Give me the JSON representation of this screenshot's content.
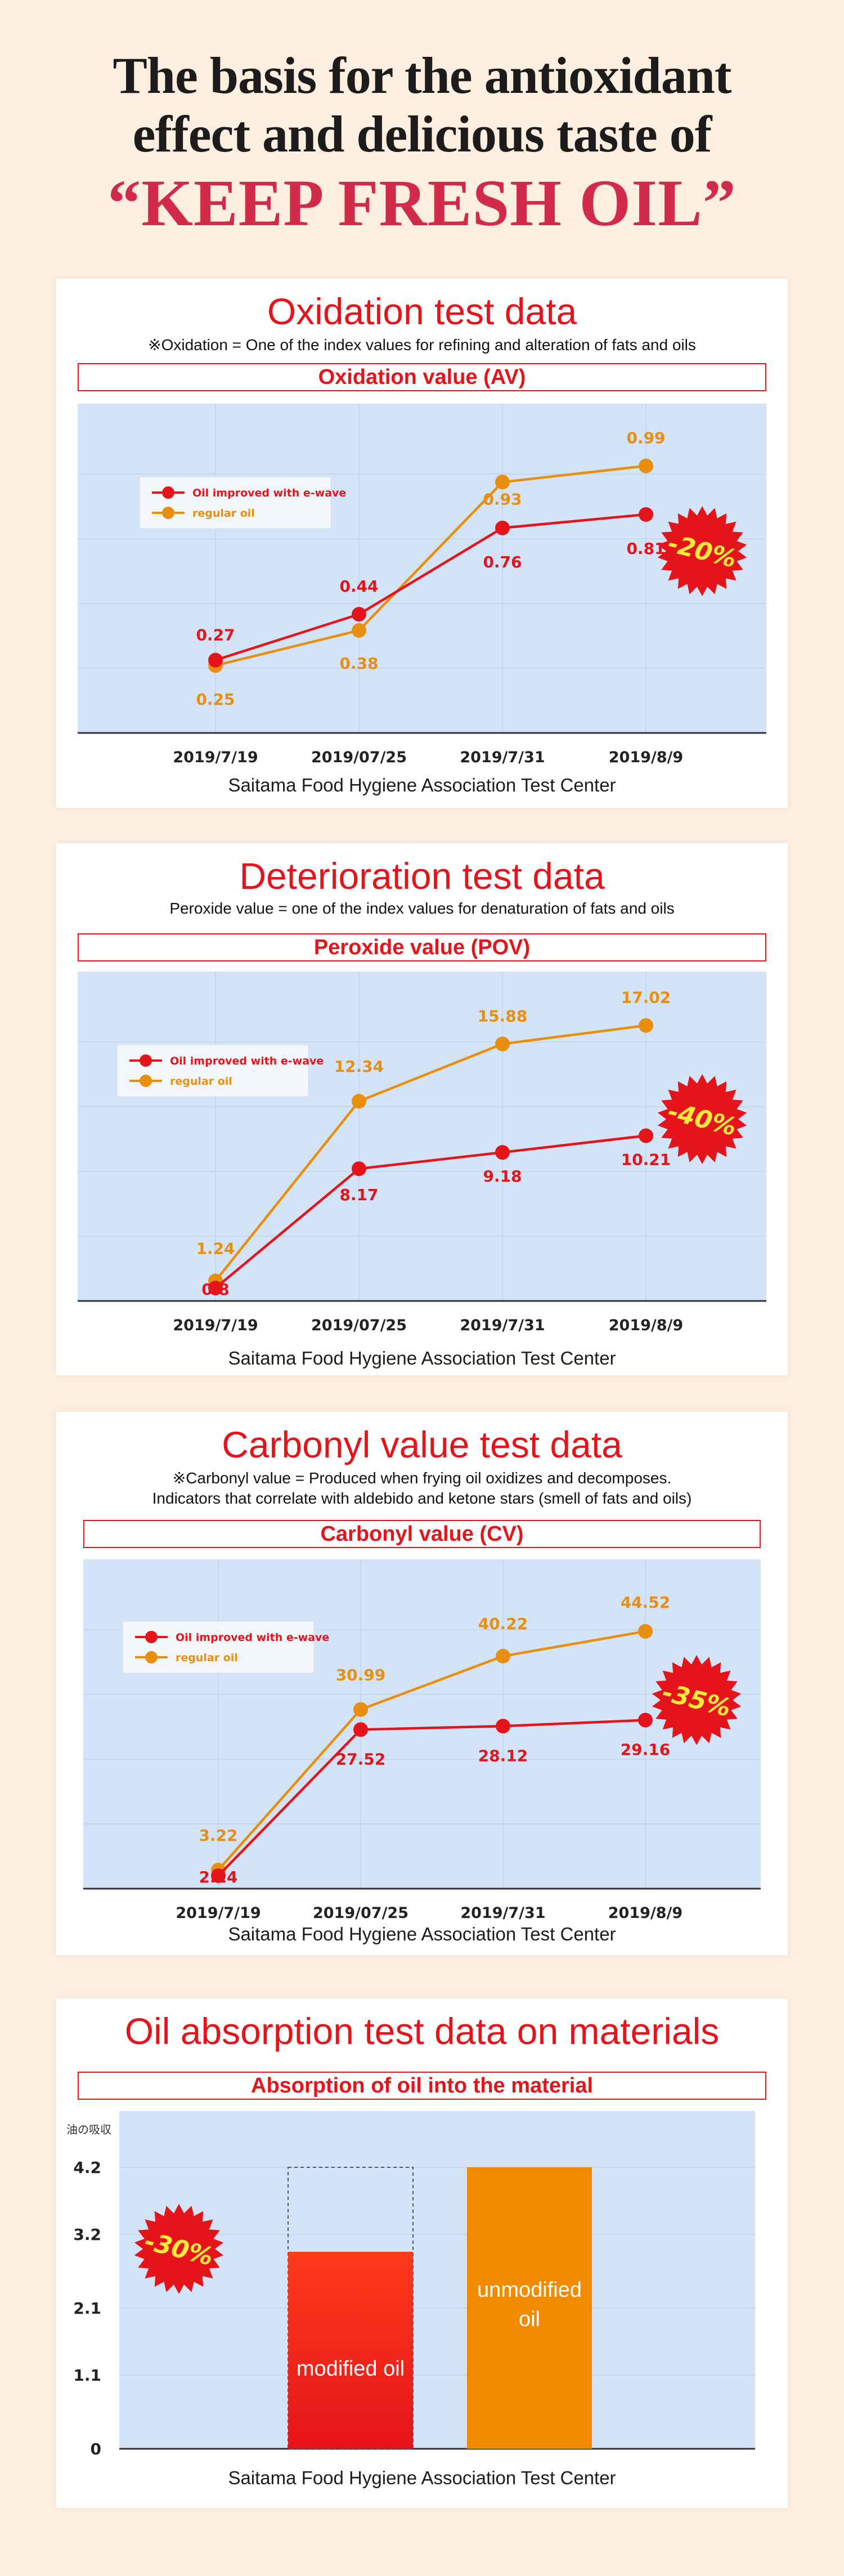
{
  "hero": {
    "line1": "The basis for the antioxidant",
    "line2": "effect and delicious taste of",
    "line3": "“KEEP FRESH OIL”"
  },
  "colors": {
    "improved": "#e5141b",
    "regular": "#ea8f0d",
    "plot_bg": "#d3e3f8",
    "badge": "#e5141b"
  },
  "oxidation": {
    "title": "Oxidation test data",
    "note": "※Oxidation = One of the index values for refining and alteration of fats and oils",
    "box": "Oxidation value (AV)",
    "source": "Saitama Food Hygiene Association Test Center",
    "badge": "-20%"
  },
  "deterioration": {
    "title": "Deterioration test data",
    "note": "Peroxide value = one of the index values for denaturation of fats and oils",
    "box": "Peroxide value (POV)",
    "source": "Saitama Food Hygiene Association Test Center",
    "badge": "-40%"
  },
  "carbonyl": {
    "title": "Carbonyl value test data",
    "note1": "※Carbonyl value = Produced when frying oil oxidizes and decomposes.",
    "note2": "Indicators that correlate with aldebido and ketone stars (smell of fats and oils)",
    "box": "Carbonyl value (CV)",
    "source": "Saitama Food Hygiene Association Test Center",
    "badge": "-35%"
  },
  "absorption": {
    "title": "Oil absorption test data on materials",
    "box": "Absorption of oil into the material",
    "source": "Saitama Food Hygiene Association Test Center",
    "badge": "-30%"
  },
  "chart_data": [
    {
      "type": "line",
      "title": "Oxidation value (AV)",
      "categories": [
        "2019/7/19",
        "2019/07/25",
        "2019/7/31",
        "2019/8/9"
      ],
      "ylim": [
        0,
        1.2
      ],
      "grid": true,
      "legend_position": "top-left",
      "series": [
        {
          "name": "Oil improved with e-wave",
          "values": [
            0.27,
            0.44,
            0.76,
            0.81
          ],
          "labels": [
            "0.27",
            "0.44",
            "0.76",
            "0.81"
          ]
        },
        {
          "name": "regular oil",
          "values": [
            0.25,
            0.38,
            0.93,
            0.99
          ],
          "labels": [
            "0.25",
            "0.38",
            "0.93",
            "0.99"
          ]
        }
      ]
    },
    {
      "type": "line",
      "title": "Peroxide value (POV)",
      "categories": [
        "2019/7/19",
        "2019/07/25",
        "2019/7/31",
        "2019/8/9"
      ],
      "ylim": [
        0,
        20
      ],
      "grid": true,
      "legend_position": "top-left",
      "series": [
        {
          "name": "Oil improved with e-wave",
          "values": [
            0.8,
            8.17,
            9.18,
            10.21
          ],
          "labels": [
            "0.8",
            "8.17",
            "9.18",
            "10.21"
          ]
        },
        {
          "name": "regular oil",
          "values": [
            1.24,
            12.34,
            15.88,
            17.02
          ],
          "labels": [
            "1.24",
            "12.34",
            "15.88",
            "17.02"
          ]
        }
      ]
    },
    {
      "type": "line",
      "title": "Carbonyl value (CV)",
      "categories": [
        "2019/7/19",
        "2019/07/25",
        "2019/7/31",
        "2019/8/9"
      ],
      "ylim": [
        0,
        56
      ],
      "grid": true,
      "legend_position": "top-left",
      "series": [
        {
          "name": "Oil improved with e-wave",
          "values": [
            2.24,
            27.52,
            28.12,
            29.16
          ],
          "labels": [
            "2.24",
            "27.52",
            "28.12",
            "29.16"
          ]
        },
        {
          "name": "regular oil",
          "values": [
            3.22,
            30.99,
            40.22,
            44.52
          ],
          "labels": [
            "3.22",
            "30.99",
            "40.22",
            "44.52"
          ]
        }
      ]
    },
    {
      "type": "bar",
      "title": "Absorption of oil into the material",
      "ylabel": "油の吸収",
      "yticks": [
        "0",
        "1.1",
        "2.1",
        "3.2",
        "4.2"
      ],
      "ylim": [
        0,
        4.2
      ],
      "grid": true,
      "categories": [
        "modified oil",
        "unmodified oil"
      ],
      "values": [
        2.94,
        4.2
      ],
      "reference_value": 4.2
    }
  ]
}
